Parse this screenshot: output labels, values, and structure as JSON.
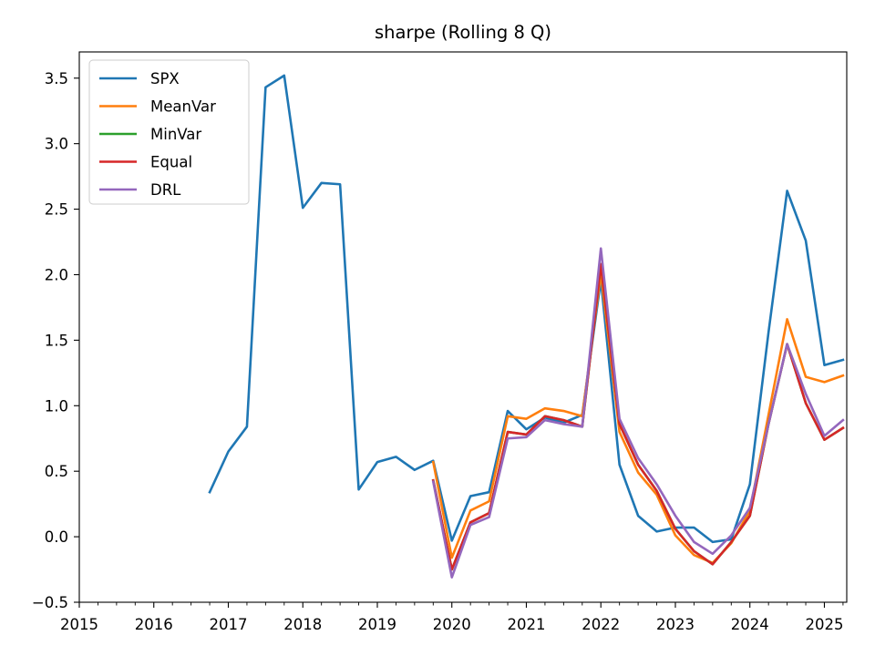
{
  "chart_data": {
    "type": "line",
    "title": "sharpe (Rolling 8 Q)",
    "xlabel": "",
    "ylabel": "",
    "xlim": [
      2015.0,
      2025.3
    ],
    "ylim": [
      -0.5,
      3.7
    ],
    "x_ticks": [
      2015,
      2016,
      2017,
      2018,
      2019,
      2020,
      2021,
      2022,
      2023,
      2024,
      2025
    ],
    "x_minor_step": 0.25,
    "y_ticks": [
      -0.5,
      0.0,
      0.5,
      1.0,
      1.5,
      2.0,
      2.5,
      3.0,
      3.5
    ],
    "y_tick_labels": [
      "−0.5",
      "0.0",
      "0.5",
      "1.0",
      "1.5",
      "2.0",
      "2.5",
      "3.0",
      "3.5"
    ],
    "grid": false,
    "legend_position": "top-left",
    "series": [
      {
        "name": "SPX",
        "color": "#1f77b4",
        "x": [
          2016.75,
          2017.0,
          2017.25,
          2017.5,
          2017.75,
          2018.0,
          2018.25,
          2018.5,
          2018.75,
          2019.0,
          2019.25,
          2019.5,
          2019.75,
          2020.0,
          2020.25,
          2020.5,
          2020.75,
          2021.0,
          2021.25,
          2021.5,
          2021.75,
          2022.0,
          2022.25,
          2022.5,
          2022.75,
          2023.0,
          2023.25,
          2023.5,
          2023.75,
          2024.0,
          2024.25,
          2024.5,
          2024.75,
          2025.0,
          2025.25
        ],
        "y": [
          0.34,
          0.65,
          0.84,
          3.43,
          3.52,
          2.51,
          2.7,
          2.69,
          0.36,
          0.57,
          0.61,
          0.51,
          0.58,
          -0.03,
          0.31,
          0.34,
          0.96,
          0.82,
          0.91,
          0.87,
          0.93,
          1.96,
          0.55,
          0.16,
          0.04,
          0.07,
          0.07,
          -0.04,
          -0.02,
          0.4,
          1.56,
          2.64,
          2.26,
          1.31,
          1.35
        ]
      },
      {
        "name": "MeanVar",
        "color": "#ff7f0e",
        "x": [
          2019.75,
          2020.0,
          2020.25,
          2020.5,
          2020.75,
          2021.0,
          2021.25,
          2021.5,
          2021.75,
          2022.0,
          2022.25,
          2022.5,
          2022.75,
          2023.0,
          2023.25,
          2023.5,
          2023.75,
          2024.0,
          2024.25,
          2024.5,
          2024.75,
          2025.0,
          2025.25
        ],
        "y": [
          0.57,
          -0.16,
          0.2,
          0.27,
          0.92,
          0.9,
          0.98,
          0.96,
          0.92,
          2.01,
          0.8,
          0.49,
          0.32,
          0.01,
          -0.14,
          -0.2,
          -0.05,
          0.2,
          0.93,
          1.66,
          1.22,
          1.18,
          1.23
        ]
      },
      {
        "name": "MinVar",
        "color": "#2ca02c",
        "x": [
          2019.75,
          2020.0,
          2020.25,
          2020.5,
          2020.75,
          2021.0,
          2021.25,
          2021.5,
          2021.75,
          2022.0,
          2022.25,
          2022.5,
          2022.75,
          2023.0,
          2023.25,
          2023.5,
          2023.75,
          2024.0,
          2024.25,
          2024.5,
          2024.75,
          2025.0,
          2025.25
        ],
        "y": [
          0.43,
          -0.25,
          0.11,
          0.18,
          0.8,
          0.78,
          0.92,
          0.89,
          0.84,
          2.08,
          0.86,
          0.55,
          0.35,
          0.06,
          -0.11,
          -0.21,
          -0.04,
          0.16,
          0.86,
          1.47,
          1.02,
          0.74,
          0.83
        ]
      },
      {
        "name": "Equal",
        "color": "#d62728",
        "x": [
          2019.75,
          2020.0,
          2020.25,
          2020.5,
          2020.75,
          2021.0,
          2021.25,
          2021.5,
          2021.75,
          2022.0,
          2022.25,
          2022.5,
          2022.75,
          2023.0,
          2023.25,
          2023.5,
          2023.75,
          2024.0,
          2024.25,
          2024.5,
          2024.75,
          2025.0,
          2025.25
        ],
        "y": [
          0.43,
          -0.25,
          0.11,
          0.18,
          0.8,
          0.78,
          0.92,
          0.89,
          0.84,
          2.08,
          0.86,
          0.55,
          0.35,
          0.06,
          -0.11,
          -0.21,
          -0.04,
          0.16,
          0.86,
          1.47,
          1.02,
          0.74,
          0.83
        ]
      },
      {
        "name": "DRL",
        "color": "#9467bd",
        "x": [
          2019.75,
          2020.0,
          2020.25,
          2020.5,
          2020.75,
          2021.0,
          2021.25,
          2021.5,
          2021.75,
          2022.0,
          2022.25,
          2022.5,
          2022.75,
          2023.0,
          2023.25,
          2023.5,
          2023.75,
          2024.0,
          2024.25,
          2024.5,
          2024.75,
          2025.0,
          2025.25
        ],
        "y": [
          0.42,
          -0.31,
          0.09,
          0.15,
          0.75,
          0.76,
          0.89,
          0.86,
          0.84,
          2.2,
          0.9,
          0.6,
          0.4,
          0.16,
          -0.04,
          -0.13,
          0.01,
          0.22,
          0.86,
          1.47,
          1.09,
          0.77,
          0.89
        ]
      }
    ]
  }
}
